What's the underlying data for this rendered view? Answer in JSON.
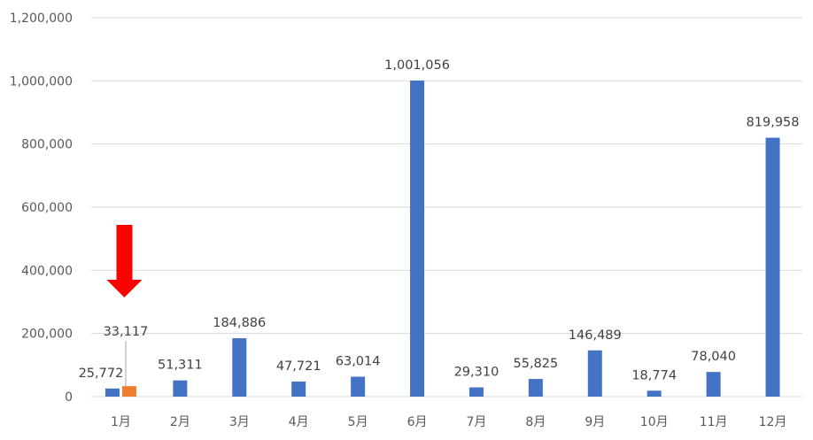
{
  "chart_data": {
    "type": "bar",
    "categories": [
      "1月",
      "2月",
      "3月",
      "4月",
      "5月",
      "6月",
      "7月",
      "8月",
      "9月",
      "10月",
      "11月",
      "12月"
    ],
    "series": [
      {
        "values": [
          25772,
          51311,
          184886,
          47721,
          63014,
          1001056,
          29310,
          55825,
          146489,
          18774,
          78040,
          819958
        ],
        "color": "#4472c4"
      },
      {
        "values": [
          33117,
          null,
          null,
          null,
          null,
          null,
          null,
          null,
          null,
          null,
          null,
          null
        ],
        "color": "#ed7d31"
      }
    ],
    "ylim": [
      0,
      1200000
    ],
    "yticks": [
      0,
      200000,
      400000,
      600000,
      800000,
      1000000,
      1200000
    ],
    "grid": true,
    "data_labels": true,
    "xlabel": "",
    "ylabel": "",
    "title": "",
    "annotation": {
      "type": "arrow",
      "direction": "down",
      "color": "#ff0000",
      "target_category": "1月"
    }
  }
}
